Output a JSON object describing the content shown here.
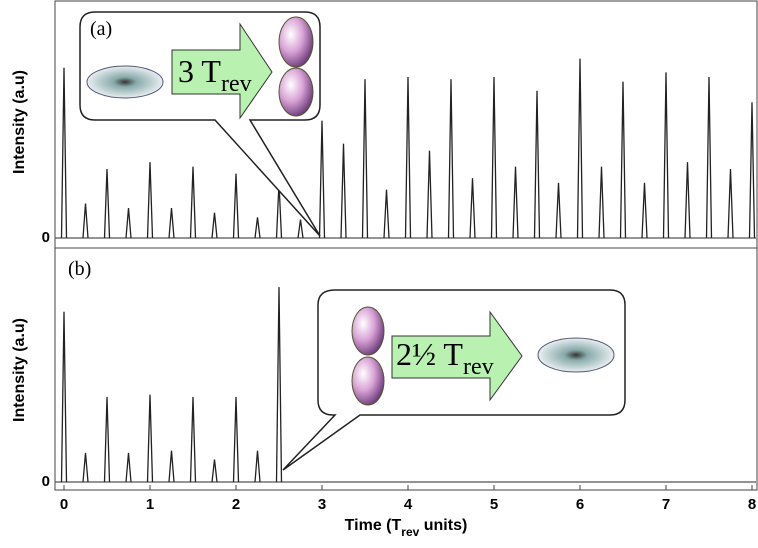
{
  "chart_data": [
    {
      "type": "stem",
      "label": "(a)",
      "ylabel": "Intensity (a.u)",
      "color": "#222222",
      "xlim": [
        0,
        8
      ],
      "ylim": [
        0,
        1
      ],
      "yticks": [
        0
      ],
      "annotation": {
        "text": "3 T",
        "sub": "rev"
      },
      "x": [
        0,
        0.25,
        0.5,
        0.75,
        1,
        1.25,
        1.5,
        1.75,
        2,
        2.25,
        2.5,
        2.75,
        3,
        3.25,
        3.5,
        3.75,
        4,
        4.25,
        4.5,
        4.75,
        5,
        5.25,
        5.5,
        5.75,
        6,
        6.25,
        6.5,
        6.75,
        7,
        7.25,
        7.5,
        7.75,
        8
      ],
      "values": [
        0.74,
        0.15,
        0.3,
        0.13,
        0.33,
        0.13,
        0.31,
        0.11,
        0.28,
        0.09,
        0.24,
        0.08,
        0.51,
        0.41,
        0.69,
        0.21,
        0.7,
        0.38,
        0.69,
        0.26,
        0.7,
        0.31,
        0.64,
        0.24,
        0.78,
        0.31,
        0.68,
        0.24,
        0.72,
        0.33,
        0.7,
        0.3,
        0.59
      ]
    },
    {
      "type": "stem",
      "label": "(b)",
      "ylabel": "Intensity (a.u)",
      "color": "#222222",
      "xlim": [
        0,
        8
      ],
      "ylim": [
        0,
        1
      ],
      "yticks": [
        0
      ],
      "xticks": [
        0,
        1,
        2,
        3,
        4,
        5,
        6,
        7,
        8
      ],
      "xlabel": {
        "text": "Time (T",
        "sub": "rev",
        "tail": " units)"
      },
      "annotation": {
        "text": "2½ T",
        "sub": "rev"
      },
      "x": [
        0,
        0.25,
        0.5,
        0.75,
        1,
        1.25,
        1.5,
        1.75,
        2,
        2.25,
        2.5
      ],
      "values": [
        0.76,
        0.13,
        0.38,
        0.13,
        0.39,
        0.14,
        0.38,
        0.1,
        0.38,
        0.14,
        0.87
      ]
    }
  ]
}
